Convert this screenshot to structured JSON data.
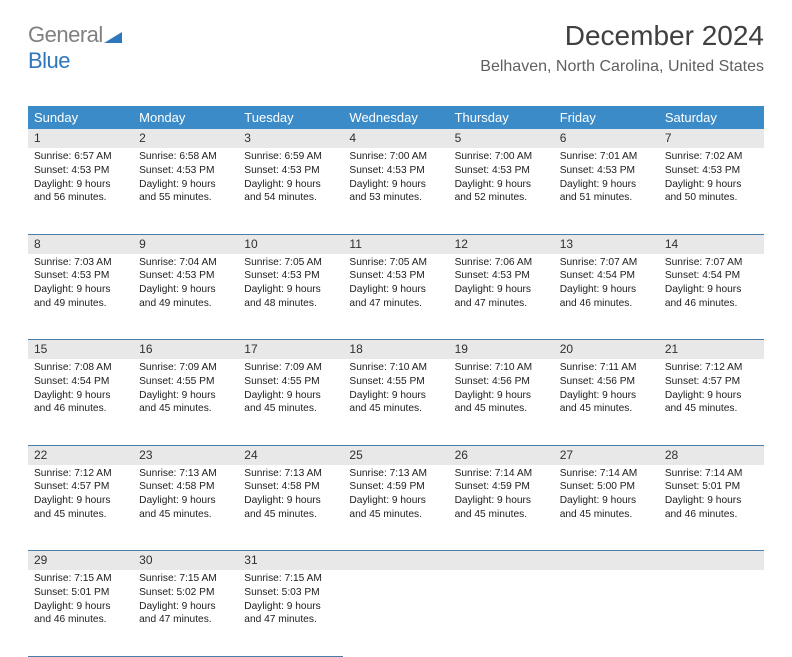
{
  "logo": {
    "text1": "General",
    "text2": "Blue",
    "triangle_color": "#2f77bb"
  },
  "title": "December 2024",
  "location": "Belhaven, North Carolina, United States",
  "colors": {
    "header_bg": "#3b8bc9",
    "header_text": "#ffffff",
    "daynum_bg": "#e8e8e8",
    "row_divider": "#4a7ca8",
    "title_color": "#404040",
    "location_color": "#606060"
  },
  "weekdays": [
    "Sunday",
    "Monday",
    "Tuesday",
    "Wednesday",
    "Thursday",
    "Friday",
    "Saturday"
  ],
  "days": [
    {
      "num": 1,
      "sunrise": "6:57 AM",
      "sunset": "4:53 PM",
      "daylight": "9 hours and 56 minutes."
    },
    {
      "num": 2,
      "sunrise": "6:58 AM",
      "sunset": "4:53 PM",
      "daylight": "9 hours and 55 minutes."
    },
    {
      "num": 3,
      "sunrise": "6:59 AM",
      "sunset": "4:53 PM",
      "daylight": "9 hours and 54 minutes."
    },
    {
      "num": 4,
      "sunrise": "7:00 AM",
      "sunset": "4:53 PM",
      "daylight": "9 hours and 53 minutes."
    },
    {
      "num": 5,
      "sunrise": "7:00 AM",
      "sunset": "4:53 PM",
      "daylight": "9 hours and 52 minutes."
    },
    {
      "num": 6,
      "sunrise": "7:01 AM",
      "sunset": "4:53 PM",
      "daylight": "9 hours and 51 minutes."
    },
    {
      "num": 7,
      "sunrise": "7:02 AM",
      "sunset": "4:53 PM",
      "daylight": "9 hours and 50 minutes."
    },
    {
      "num": 8,
      "sunrise": "7:03 AM",
      "sunset": "4:53 PM",
      "daylight": "9 hours and 49 minutes."
    },
    {
      "num": 9,
      "sunrise": "7:04 AM",
      "sunset": "4:53 PM",
      "daylight": "9 hours and 49 minutes."
    },
    {
      "num": 10,
      "sunrise": "7:05 AM",
      "sunset": "4:53 PM",
      "daylight": "9 hours and 48 minutes."
    },
    {
      "num": 11,
      "sunrise": "7:05 AM",
      "sunset": "4:53 PM",
      "daylight": "9 hours and 47 minutes."
    },
    {
      "num": 12,
      "sunrise": "7:06 AM",
      "sunset": "4:53 PM",
      "daylight": "9 hours and 47 minutes."
    },
    {
      "num": 13,
      "sunrise": "7:07 AM",
      "sunset": "4:54 PM",
      "daylight": "9 hours and 46 minutes."
    },
    {
      "num": 14,
      "sunrise": "7:07 AM",
      "sunset": "4:54 PM",
      "daylight": "9 hours and 46 minutes."
    },
    {
      "num": 15,
      "sunrise": "7:08 AM",
      "sunset": "4:54 PM",
      "daylight": "9 hours and 46 minutes."
    },
    {
      "num": 16,
      "sunrise": "7:09 AM",
      "sunset": "4:55 PM",
      "daylight": "9 hours and 45 minutes."
    },
    {
      "num": 17,
      "sunrise": "7:09 AM",
      "sunset": "4:55 PM",
      "daylight": "9 hours and 45 minutes."
    },
    {
      "num": 18,
      "sunrise": "7:10 AM",
      "sunset": "4:55 PM",
      "daylight": "9 hours and 45 minutes."
    },
    {
      "num": 19,
      "sunrise": "7:10 AM",
      "sunset": "4:56 PM",
      "daylight": "9 hours and 45 minutes."
    },
    {
      "num": 20,
      "sunrise": "7:11 AM",
      "sunset": "4:56 PM",
      "daylight": "9 hours and 45 minutes."
    },
    {
      "num": 21,
      "sunrise": "7:12 AM",
      "sunset": "4:57 PM",
      "daylight": "9 hours and 45 minutes."
    },
    {
      "num": 22,
      "sunrise": "7:12 AM",
      "sunset": "4:57 PM",
      "daylight": "9 hours and 45 minutes."
    },
    {
      "num": 23,
      "sunrise": "7:13 AM",
      "sunset": "4:58 PM",
      "daylight": "9 hours and 45 minutes."
    },
    {
      "num": 24,
      "sunrise": "7:13 AM",
      "sunset": "4:58 PM",
      "daylight": "9 hours and 45 minutes."
    },
    {
      "num": 25,
      "sunrise": "7:13 AM",
      "sunset": "4:59 PM",
      "daylight": "9 hours and 45 minutes."
    },
    {
      "num": 26,
      "sunrise": "7:14 AM",
      "sunset": "4:59 PM",
      "daylight": "9 hours and 45 minutes."
    },
    {
      "num": 27,
      "sunrise": "7:14 AM",
      "sunset": "5:00 PM",
      "daylight": "9 hours and 45 minutes."
    },
    {
      "num": 28,
      "sunrise": "7:14 AM",
      "sunset": "5:01 PM",
      "daylight": "9 hours and 46 minutes."
    },
    {
      "num": 29,
      "sunrise": "7:15 AM",
      "sunset": "5:01 PM",
      "daylight": "9 hours and 46 minutes."
    },
    {
      "num": 30,
      "sunrise": "7:15 AM",
      "sunset": "5:02 PM",
      "daylight": "9 hours and 47 minutes."
    },
    {
      "num": 31,
      "sunrise": "7:15 AM",
      "sunset": "5:03 PM",
      "daylight": "9 hours and 47 minutes."
    }
  ],
  "labels": {
    "sunrise": "Sunrise:",
    "sunset": "Sunset:",
    "daylight": "Daylight:"
  },
  "layout": {
    "first_weekday_offset": 0,
    "weeks": 5
  }
}
